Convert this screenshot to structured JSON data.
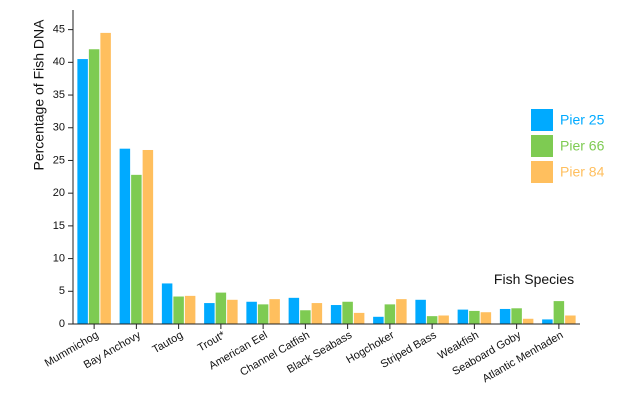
{
  "chart_data": {
    "type": "bar",
    "ylabel": "Percentage of Fish DNA",
    "xlabel": "Fish Species",
    "ylim": [
      0,
      48
    ],
    "yticks": [
      0,
      5,
      10,
      15,
      20,
      25,
      30,
      35,
      40,
      45
    ],
    "grid": false,
    "legend_position": "right",
    "categories": [
      "Mummichog",
      "Bay Anchovy",
      "Tautog",
      "Trout*",
      "American Eel",
      "Channel Catfish",
      "Black Seabass",
      "Hogchoker",
      "Striped Bass",
      "Weakfish",
      "Seaboard Goby",
      "Atlantic Menhaden"
    ],
    "series": [
      {
        "name": "Pier 25",
        "color": "#00aaff",
        "values": [
          40.5,
          26.8,
          6.2,
          3.2,
          3.4,
          4.0,
          2.9,
          1.1,
          3.7,
          2.2,
          2.3,
          0.7
        ]
      },
      {
        "name": "Pier 66",
        "color": "#7ecb52",
        "values": [
          42.0,
          22.8,
          4.2,
          4.8,
          3.0,
          2.1,
          3.4,
          3.0,
          1.2,
          2.0,
          2.4,
          3.5
        ]
      },
      {
        "name": "Pier 84",
        "color": "#ffbf5e",
        "values": [
          44.5,
          26.6,
          4.3,
          3.7,
          3.8,
          3.2,
          1.7,
          3.8,
          1.3,
          1.8,
          0.8,
          1.3
        ]
      }
    ]
  }
}
